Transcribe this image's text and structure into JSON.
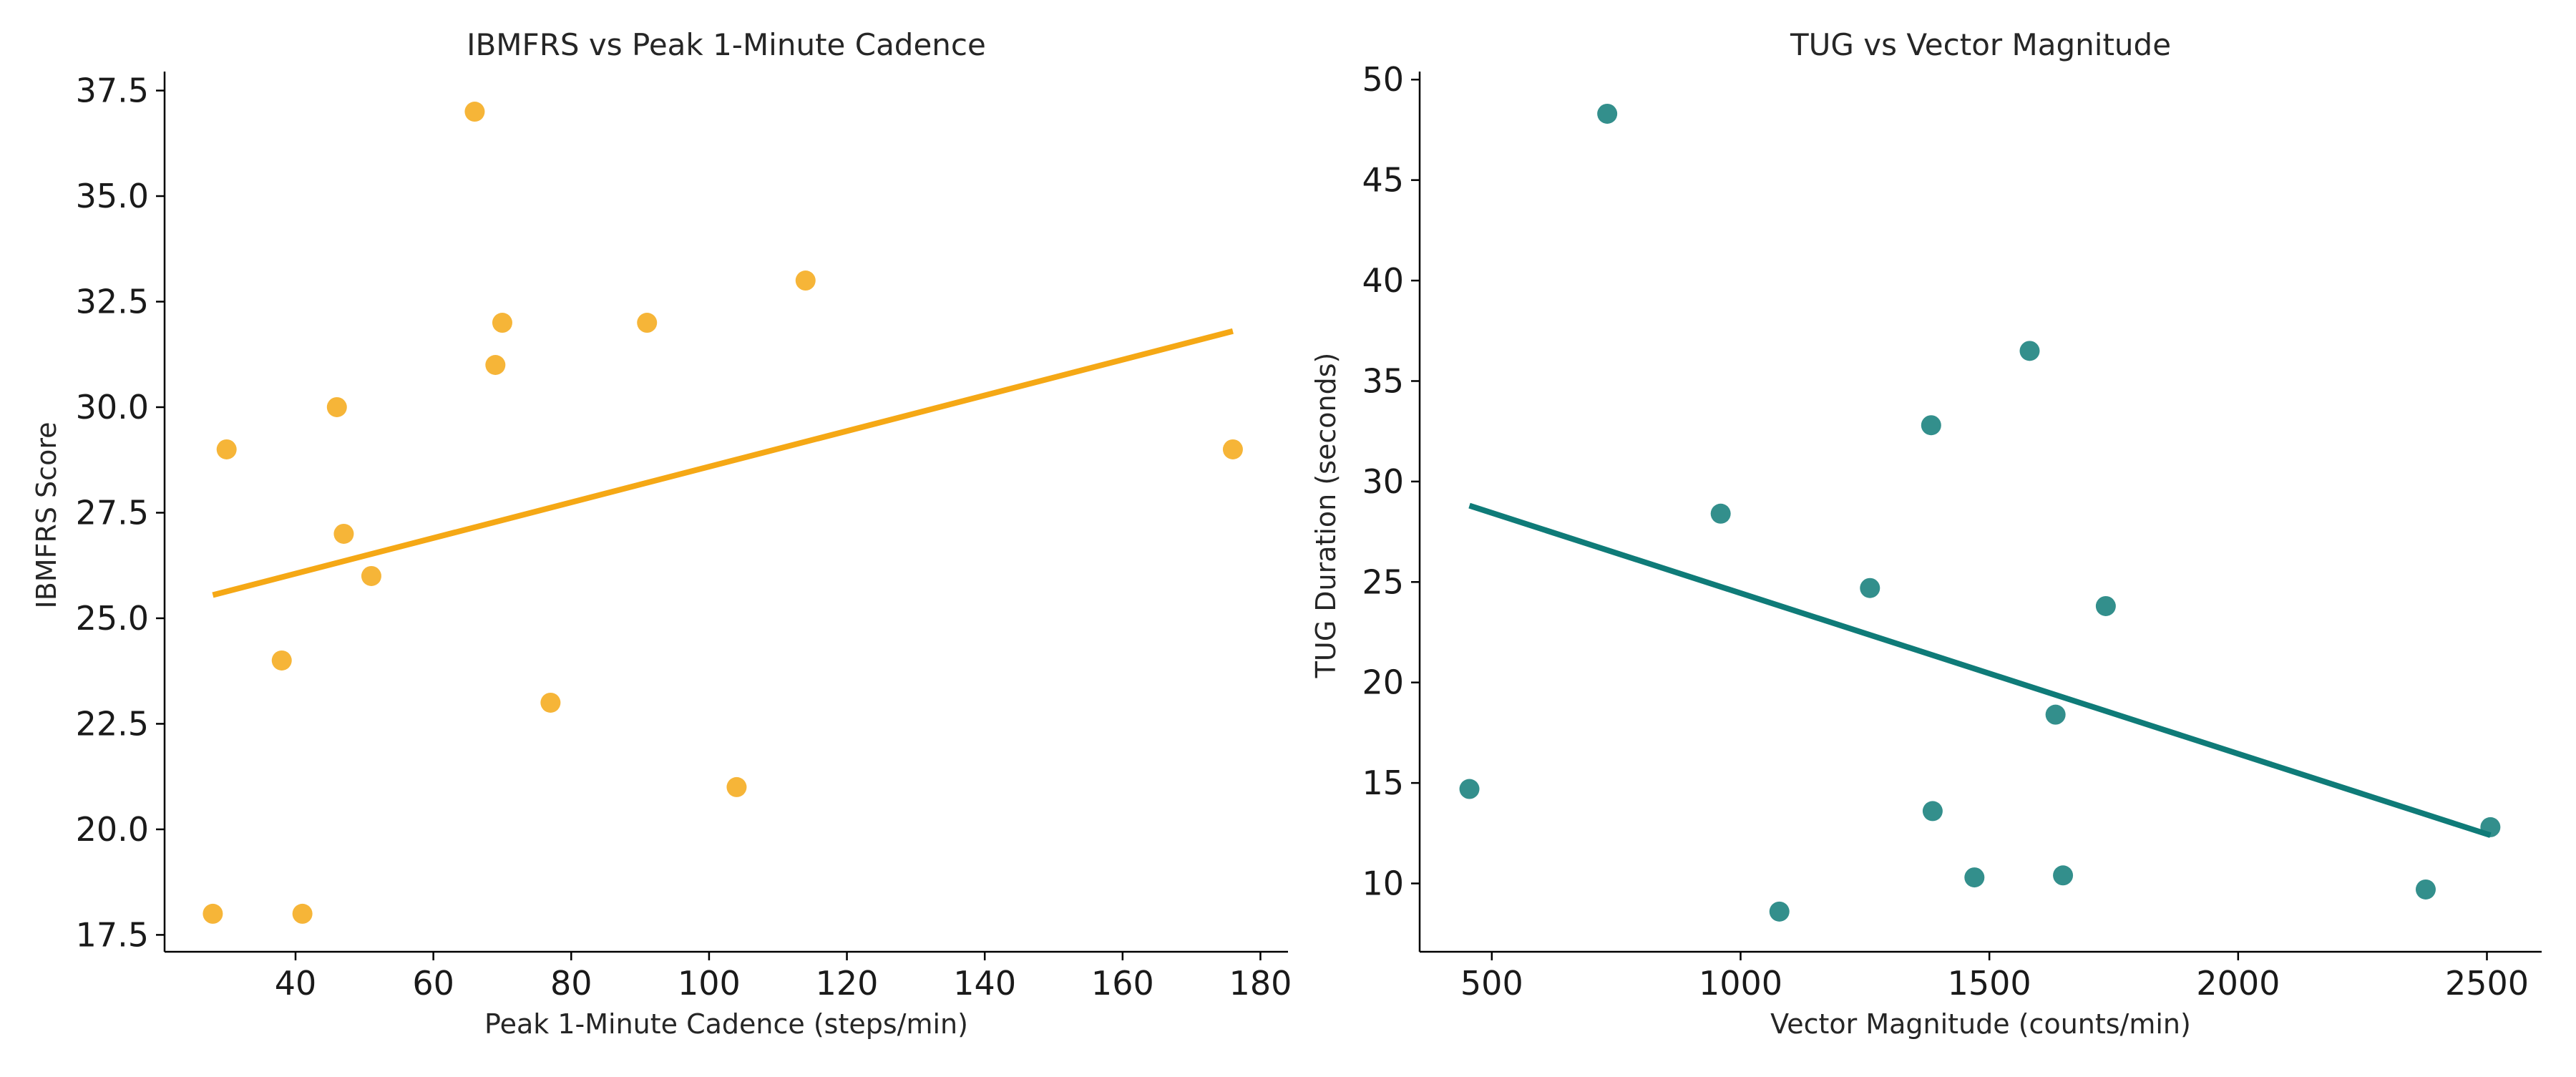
{
  "chart_data": [
    {
      "type": "scatter",
      "title": "IBMFRS vs Peak 1-Minute Cadence",
      "xlabel": "Peak 1-Minute Cadence (steps/min)",
      "ylabel": "IBMFRS Score",
      "xlim": [
        21,
        184
      ],
      "ylim": [
        17.1,
        37.95
      ],
      "xticks": [
        40,
        60,
        80,
        100,
        120,
        140,
        160,
        180
      ],
      "yticks": [
        17.5,
        20.0,
        22.5,
        25.0,
        27.5,
        30.0,
        32.5,
        35.0,
        37.5
      ],
      "ytick_decimals": 1,
      "color": "#f5a815",
      "series": [
        {
          "x": [
            28,
            30,
            38,
            41,
            46,
            47,
            51,
            66,
            69,
            70,
            77,
            91,
            104,
            114,
            176
          ],
          "y": [
            18,
            29,
            24,
            18,
            30,
            27,
            26,
            37,
            31,
            32,
            23,
            32,
            21,
            33,
            29
          ]
        }
      ],
      "trend_line": {
        "x": [
          28,
          176
        ],
        "y": [
          25.55,
          31.8
        ]
      },
      "grid": false,
      "legend": "none"
    },
    {
      "type": "scatter",
      "title": "TUG vs Vector Magnitude",
      "xlabel": "Vector Magnitude (counts/min)",
      "ylabel": "TUG Duration (seconds)",
      "xlim": [
        355,
        2610
      ],
      "ylim": [
        6.6,
        50.4
      ],
      "xticks": [
        500,
        1000,
        1500,
        2000,
        2500
      ],
      "yticks": [
        10,
        15,
        20,
        25,
        30,
        35,
        40,
        45,
        50
      ],
      "ytick_decimals": 0,
      "color": "#0f7b78",
      "series": [
        {
          "x": [
            455,
            732,
            960,
            1078,
            1260,
            1383,
            1386,
            1470,
            1581,
            1633,
            1648,
            1734,
            2377,
            2507
          ],
          "y": [
            14.7,
            48.3,
            28.4,
            8.6,
            24.7,
            32.8,
            13.6,
            10.3,
            36.5,
            18.4,
            10.4,
            23.8,
            9.7,
            12.8
          ]
        }
      ],
      "trend_line": {
        "x": [
          455,
          2507
        ],
        "y": [
          28.8,
          12.4
        ]
      },
      "grid": false,
      "legend": "none"
    }
  ]
}
